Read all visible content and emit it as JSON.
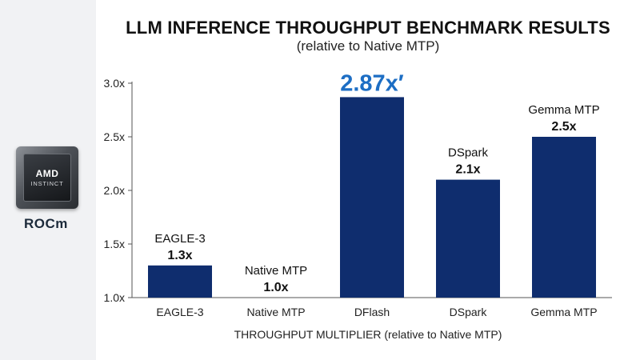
{
  "logo": {
    "chip_brand": "AMD",
    "chip_sub": "INSTINCT",
    "platform": "ROCm"
  },
  "chart_data": {
    "type": "bar",
    "title": "LLM INFERENCE THROUGHPUT BENCHMARK RESULTS",
    "subtitle": "(relative to Native MTP)",
    "xlabel": "THROUGHPUT MULTIPLIER (relative to Native MTP)",
    "ylabel": "",
    "categories": [
      "EAGLE-3",
      "Native MTP",
      "DFlash",
      "DSpark",
      "Gemma MTP"
    ],
    "values": [
      1.3,
      1.0,
      2.87,
      2.1,
      2.5
    ],
    "bar_labels": [
      {
        "name": "EAGLE-3",
        "value": "1.3x"
      },
      {
        "name": "Native MTP",
        "value": "1.0x"
      },
      {
        "name": "",
        "value": "2.87x′"
      },
      {
        "name": "DSpark",
        "value": "2.1x"
      },
      {
        "name": "Gemma MTP",
        "value": "2.5x"
      }
    ],
    "highlight_index": 2,
    "yticks": [
      "1.0x",
      "1.5x",
      "2.0x",
      "2.5x",
      "3.0x"
    ],
    "ytick_values": [
      1.0,
      1.5,
      2.0,
      2.5,
      3.0
    ],
    "ylim": [
      1.0,
      3.0
    ],
    "grid": false,
    "colors": {
      "bar": "#0f2d6e",
      "highlight_label": "#1d6ec4",
      "axis": "#555555"
    }
  }
}
